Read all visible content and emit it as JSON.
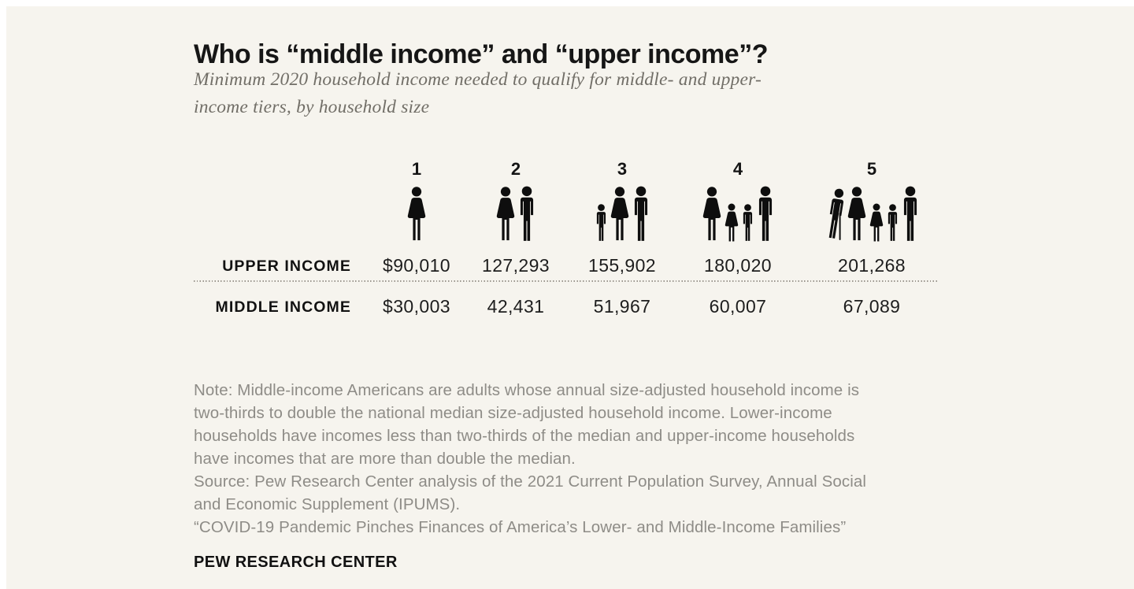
{
  "header": {
    "title": "Who is “middle income” and “upper income”?",
    "subtitle_lines": [
      "Minimum 2020 household income needed to qualify for middle- and upper-",
      "income tiers, by household size"
    ]
  },
  "table": {
    "row_labels": [
      "UPPER INCOME",
      "MIDDLE INCOME"
    ],
    "columns": [
      {
        "number": "1",
        "icons": [
          "woman"
        ],
        "upper": "$90,010",
        "middle": "$30,003"
      },
      {
        "number": "2",
        "icons": [
          "woman",
          "man"
        ],
        "upper": "127,293",
        "middle": "42,431"
      },
      {
        "number": "3",
        "icons": [
          "boy",
          "woman",
          "man"
        ],
        "upper": "155,902",
        "middle": "51,967"
      },
      {
        "number": "4",
        "icons": [
          "woman",
          "girl",
          "boy",
          "man"
        ],
        "upper": "180,020",
        "middle": "60,007"
      },
      {
        "number": "5",
        "icons": [
          "elderly",
          "woman",
          "girl",
          "boy",
          "man"
        ],
        "upper": "201,268",
        "middle": "67,089"
      }
    ]
  },
  "footer": {
    "lines": [
      "Note: Middle-income Americans are adults whose annual size-adjusted household income is",
      "two-thirds to double the national median size-adjusted household income. Lower-income",
      "households have incomes less than two-thirds of the median and upper-income households",
      "have incomes that are more than double the median.",
      "Source: Pew Research Center analysis of the 2021 Current Population Survey, Annual Social",
      "and Economic Supplement (IPUMS).",
      "“COVID-19 Pandemic Pinches Finances of America’s Lower- and Middle-Income Families”"
    ],
    "brand": "PEW RESEARCH CENTER"
  },
  "colors": {
    "page_background": "#ffffff",
    "card_background": "#f6f4ee",
    "ink": "#141414",
    "value_text": "#1d1d1d",
    "subtitle_text": "#716e67",
    "note_text": "#8e8c87",
    "dotted_line": "#9b968e",
    "icon_fill": "#0e0e0e"
  },
  "chart_data": {
    "type": "table",
    "title": "Who is “middle income” and “upper income”?",
    "subtitle": "Minimum 2020 household income needed to qualify for middle- and upper-income tiers, by household size",
    "categories": [
      "1",
      "2",
      "3",
      "4",
      "5"
    ],
    "category_axis_label": "household size",
    "category_icons": [
      [
        "woman"
      ],
      [
        "woman",
        "man"
      ],
      [
        "boy",
        "woman",
        "man"
      ],
      [
        "woman",
        "girl",
        "boy",
        "man"
      ],
      [
        "elderly",
        "woman",
        "girl",
        "boy",
        "man"
      ]
    ],
    "series": [
      {
        "name": "UPPER INCOME",
        "values": [
          90010,
          127293,
          155902,
          180020,
          201268
        ],
        "labels": [
          "$90,010",
          "127,293",
          "155,902",
          "180,020",
          "201,268"
        ]
      },
      {
        "name": "MIDDLE INCOME",
        "values": [
          30003,
          42431,
          51967,
          60007,
          67089
        ],
        "labels": [
          "$30,003",
          "42,431",
          "51,967",
          "60,007",
          "67,089"
        ]
      }
    ],
    "note": "Note: Middle-income Americans are adults whose annual size-adjusted household income is two-thirds to double the national median size-adjusted household income. Lower-income households have incomes less than two-thirds of the median and upper-income households have incomes that are more than double the median.",
    "source": "Source: Pew Research Center analysis of the 2021 Current Population Survey, Annual Social and Economic Supplement (IPUMS).",
    "report": "“COVID-19 Pandemic Pinches Finances of America’s Lower- and Middle-Income Families”",
    "branding": "PEW RESEARCH CENTER",
    "grid": false,
    "legend_position": "left-row-labels"
  }
}
